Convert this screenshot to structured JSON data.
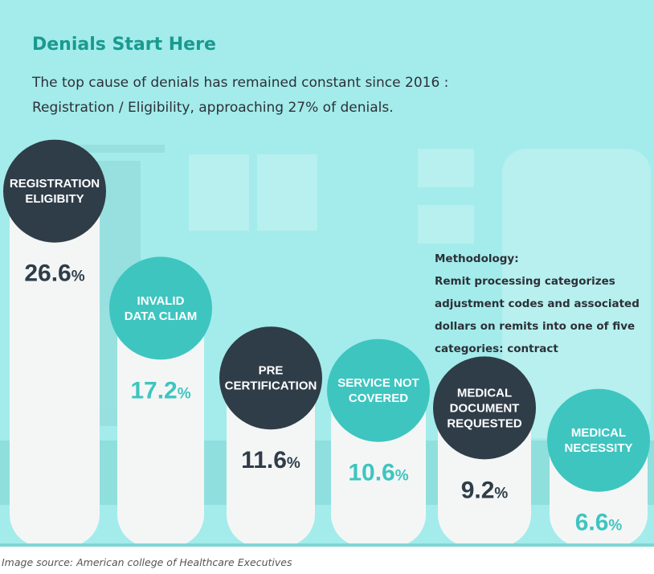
{
  "chart_data": {
    "type": "bar",
    "title": "Denials Start Here",
    "subtitle": [
      "The top cause of denials has remained constant since 2016 :",
      "Registration / Eligibility, approaching 27% of denials."
    ],
    "categories": [
      "REGISTRATION\nELIGIBITY",
      "INVALID\nDATA CLIAM",
      "PRE\nCERTIFICATION",
      "SERVICE NOT\nCOVERED",
      "MEDICAL\nDOCUMENT\nREQUESTED",
      "MEDICAL\nNECESSITY"
    ],
    "values": [
      26.6,
      17.2,
      11.6,
      10.6,
      9.2,
      6.6
    ],
    "value_labels": [
      "26.6%",
      "17.2%",
      "11.6%",
      "10.6%",
      "9.2%",
      "6.6%"
    ],
    "colors": [
      "#2f3d48",
      "#3ec5c0",
      "#2f3d48",
      "#3ec5c0",
      "#2f3d48",
      "#3ec5c0"
    ],
    "annotation": [
      "Methodology:",
      "Remit processing categorizes",
      "adjustment codes and associated",
      "dollars on remits into one of five",
      "categories: contract"
    ],
    "source": "Image source: American college of Healthcare Executives"
  }
}
